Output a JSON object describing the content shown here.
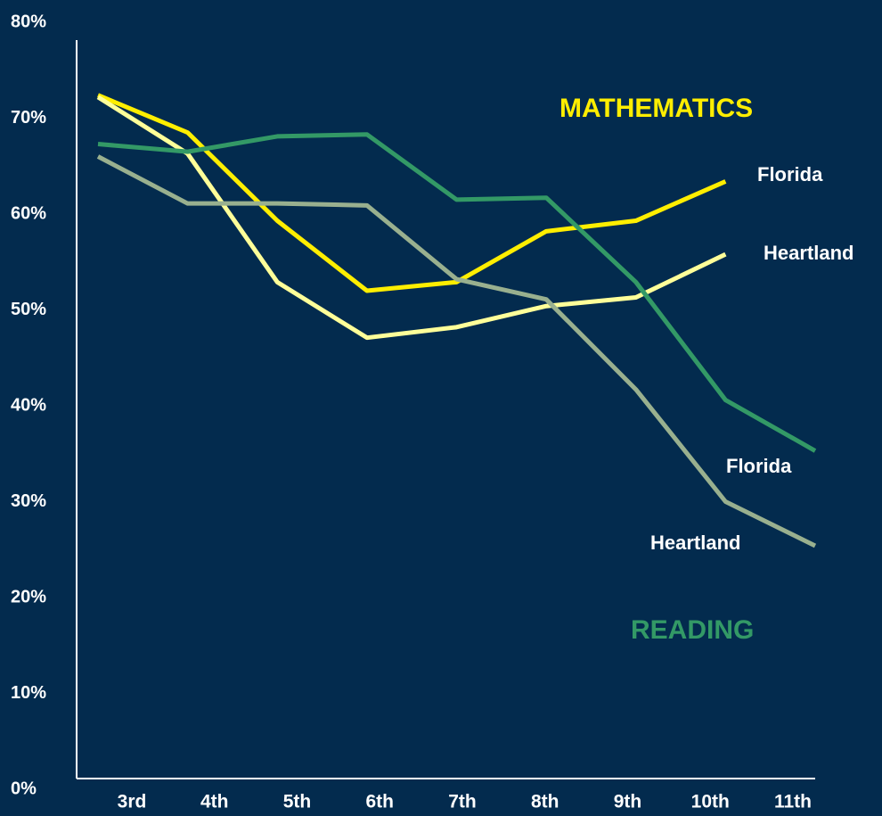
{
  "chart_data": {
    "type": "line",
    "categories": [
      "3rd",
      "4th",
      "5th",
      "6th",
      "7th",
      "8th",
      "9th",
      "10th",
      "11th"
    ],
    "series": [
      {
        "name": "Florida",
        "group": "MATHEMATICS",
        "color": "#ffee00",
        "values": [
          72.4,
          68.5,
          59.3,
          52.0,
          52.9,
          58.2,
          59.3,
          63.4,
          null
        ]
      },
      {
        "name": "Heartland",
        "group": "MATHEMATICS",
        "color": "#ffff99",
        "values": [
          72.2,
          66.3,
          52.9,
          47.1,
          48.2,
          50.4,
          51.3,
          55.8,
          null
        ]
      },
      {
        "name": "Florida",
        "group": "READING",
        "color": "#339966",
        "values": [
          67.3,
          66.5,
          68.1,
          68.3,
          61.5,
          61.7,
          52.9,
          40.6,
          35.3
        ]
      },
      {
        "name": "Heartland",
        "group": "READING",
        "color": "#99b08f",
        "values": [
          66.0,
          61.1,
          61.1,
          60.9,
          53.2,
          51.1,
          41.7,
          30.0,
          25.4
        ]
      }
    ],
    "annotations": [
      {
        "text": "MATHEMATICS",
        "color": "#ffee00"
      },
      {
        "text": "READING",
        "color": "#339966"
      }
    ],
    "ylim": [
      0,
      80
    ],
    "yticks": [
      {
        "value": 0,
        "label": "0%"
      },
      {
        "value": 10,
        "label": "10%"
      },
      {
        "value": 20,
        "label": "20%"
      },
      {
        "value": 30,
        "label": "30%"
      },
      {
        "value": 40,
        "label": "40%"
      },
      {
        "value": 50,
        "label": "50%"
      },
      {
        "value": 60,
        "label": "60%"
      },
      {
        "value": 70,
        "label": "70%"
      },
      {
        "value": 80,
        "label": "80%"
      }
    ],
    "grid": false
  }
}
